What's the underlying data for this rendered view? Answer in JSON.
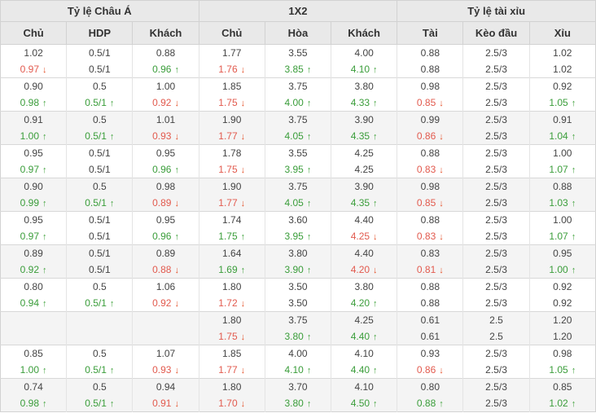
{
  "table": {
    "groups": [
      {
        "label": "Tỷ lệ Châu Á",
        "cols": [
          "Chủ",
          "HDP",
          "Khách"
        ]
      },
      {
        "label": "1X2",
        "cols": [
          "Chủ",
          "Hòa",
          "Khách"
        ]
      },
      {
        "label": "Tỷ lệ tài xỉu",
        "cols": [
          "Tài",
          "Kèo đầu",
          "Xỉu"
        ]
      }
    ],
    "colors": {
      "up_green": "#3a9d3a",
      "down_red": "#e25a4e",
      "down_arrow_orange": "#e5532c",
      "header_bg": "#e9e9e9",
      "row_alt_bg": "#f4f4f4"
    },
    "up_arrow_glyph": "↑",
    "down_arrow_glyph": "↓",
    "blocks": [
      {
        "rows": [
          [
            "1.02",
            "0.5/1",
            "0.88",
            "1.77",
            "3.55",
            "4.00",
            "0.88",
            "2.5/3",
            "1.02"
          ],
          [
            "0.97 d",
            "0.5/1",
            "0.96 u",
            "1.76 d",
            "3.85 u",
            "4.10 u",
            "0.88",
            "2.5/3",
            "1.02"
          ]
        ]
      },
      {
        "rows": [
          [
            "0.90",
            "0.5",
            "1.00",
            "1.85",
            "3.75",
            "3.80",
            "0.98",
            "2.5/3",
            "0.92"
          ],
          [
            "0.98 u",
            "0.5/1 u",
            "0.92 d",
            "1.75 d",
            "4.00 u",
            "4.33 u",
            "0.85 d",
            "2.5/3",
            "1.05 u"
          ]
        ]
      },
      {
        "rows": [
          [
            "0.91",
            "0.5",
            "1.01",
            "1.90",
            "3.75",
            "3.90",
            "0.99",
            "2.5/3",
            "0.91"
          ],
          [
            "1.00 u",
            "0.5/1 u",
            "0.93 d",
            "1.77 d",
            "4.05 u",
            "4.35 u",
            "0.86 d",
            "2.5/3",
            "1.04 u"
          ]
        ]
      },
      {
        "rows": [
          [
            "0.95",
            "0.5/1",
            "0.95",
            "1.78",
            "3.55",
            "4.25",
            "0.88",
            "2.5/3",
            "1.00"
          ],
          [
            "0.97 u",
            "0.5/1",
            "0.96 u",
            "1.75 d",
            "3.95 u",
            "4.25",
            "0.83 d",
            "2.5/3",
            "1.07 u"
          ]
        ]
      },
      {
        "rows": [
          [
            "0.90",
            "0.5",
            "0.98",
            "1.90",
            "3.75",
            "3.90",
            "0.98",
            "2.5/3",
            "0.88"
          ],
          [
            "0.99 u",
            "0.5/1 u",
            "0.89 d",
            "1.77 d",
            "4.05 u",
            "4.35 u",
            "0.85 d",
            "2.5/3",
            "1.03 u"
          ]
        ]
      },
      {
        "rows": [
          [
            "0.95",
            "0.5/1",
            "0.95",
            "1.74",
            "3.60",
            "4.40",
            "0.88",
            "2.5/3",
            "1.00"
          ],
          [
            "0.97 u",
            "0.5/1",
            "0.96 u",
            "1.75 u",
            "3.95 u",
            "4.25 d",
            "0.83 d",
            "2.5/3",
            "1.07 u"
          ]
        ]
      },
      {
        "rows": [
          [
            "0.89",
            "0.5/1",
            "0.89",
            "1.64",
            "3.80",
            "4.40",
            "0.83",
            "2.5/3",
            "0.95"
          ],
          [
            "0.92 u",
            "0.5/1",
            "0.88 d",
            "1.69 u",
            "3.90 u",
            "4.20 d",
            "0.81 d",
            "2.5/3",
            "1.00 u"
          ]
        ]
      },
      {
        "rows": [
          [
            "0.80",
            "0.5",
            "1.06",
            "1.80",
            "3.50",
            "3.80",
            "0.88",
            "2.5/3",
            "0.92"
          ],
          [
            "0.94 u",
            "0.5/1 u",
            "0.92 d",
            "1.72 d",
            "3.50",
            "4.20 u",
            "0.88",
            "2.5/3",
            "0.92"
          ]
        ]
      },
      {
        "rows": [
          [
            "",
            "",
            "",
            "1.80",
            "3.75",
            "4.25",
            "0.61",
            "2.5",
            "1.20"
          ],
          [
            "",
            "",
            "",
            "1.75 d",
            "3.80 u",
            "4.40 u",
            "0.61",
            "2.5",
            "1.20"
          ]
        ]
      },
      {
        "rows": [
          [
            "0.85",
            "0.5",
            "1.07",
            "1.85",
            "4.00",
            "4.10",
            "0.93",
            "2.5/3",
            "0.98"
          ],
          [
            "1.00 u",
            "0.5/1 u",
            "0.93 d",
            "1.77 d",
            "4.10 u",
            "4.40 u",
            "0.86 d",
            "2.5/3",
            "1.05 u"
          ]
        ]
      },
      {
        "rows": [
          [
            "0.74",
            "0.5",
            "0.94",
            "1.80",
            "3.70",
            "4.10",
            "0.80",
            "2.5/3",
            "0.85"
          ],
          [
            "0.98 u",
            "0.5/1 u",
            "0.91 d",
            "1.70 d",
            "3.80 u",
            "4.50 u",
            "0.88 u",
            "2.5/3",
            "1.02 u"
          ]
        ]
      }
    ]
  }
}
